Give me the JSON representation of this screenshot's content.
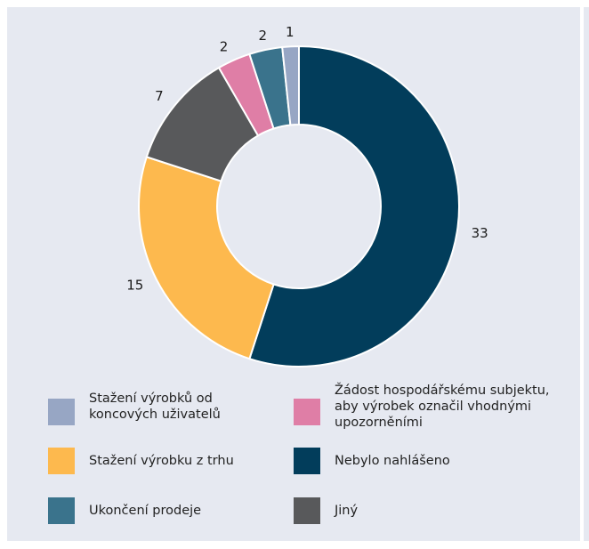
{
  "chart_data": {
    "type": "donut",
    "start_angle_deg": 0,
    "direction": "clockwise",
    "slices": [
      {
        "label": "Nebylo nahlášeno",
        "value": 33,
        "color": "#023d5b"
      },
      {
        "label": "Stažení výrobku z trhu",
        "value": 15,
        "color": "#fdb94e"
      },
      {
        "label": "Jiný",
        "value": 7,
        "color": "#58595b"
      },
      {
        "label": "Žádost hospodářskému subjektu, aby výrobek označil vhodnými upozorněními",
        "value": 2,
        "color": "#df7ea6"
      },
      {
        "label": "Ukončení prodeje",
        "value": 2,
        "color": "#3a738c"
      },
      {
        "label": "Stažení výrobků od koncových uživatelů",
        "value": 1,
        "color": "#97a6c4"
      }
    ],
    "legend_order": [
      5,
      3,
      1,
      0,
      4,
      2
    ],
    "legend_position": "bottom"
  }
}
